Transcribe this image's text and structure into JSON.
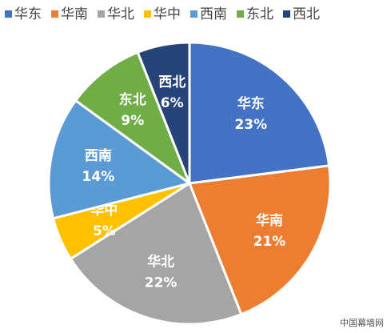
{
  "chart_data": {
    "type": "pie",
    "categories": [
      "华东",
      "华南",
      "华北",
      "华中",
      "西南",
      "东北",
      "西北"
    ],
    "values": [
      23,
      21,
      22,
      5,
      14,
      9,
      6
    ],
    "value_labels": [
      "23%",
      "21%",
      "22%",
      "5%",
      "14%",
      "9%",
      "6%"
    ],
    "colors": [
      "#4472c4",
      "#ed7d31",
      "#a5a5a5",
      "#ffc000",
      "#5b9bd5",
      "#70ad47",
      "#264478"
    ],
    "legend": "top"
  },
  "footer_credit": "中国幕墙网"
}
